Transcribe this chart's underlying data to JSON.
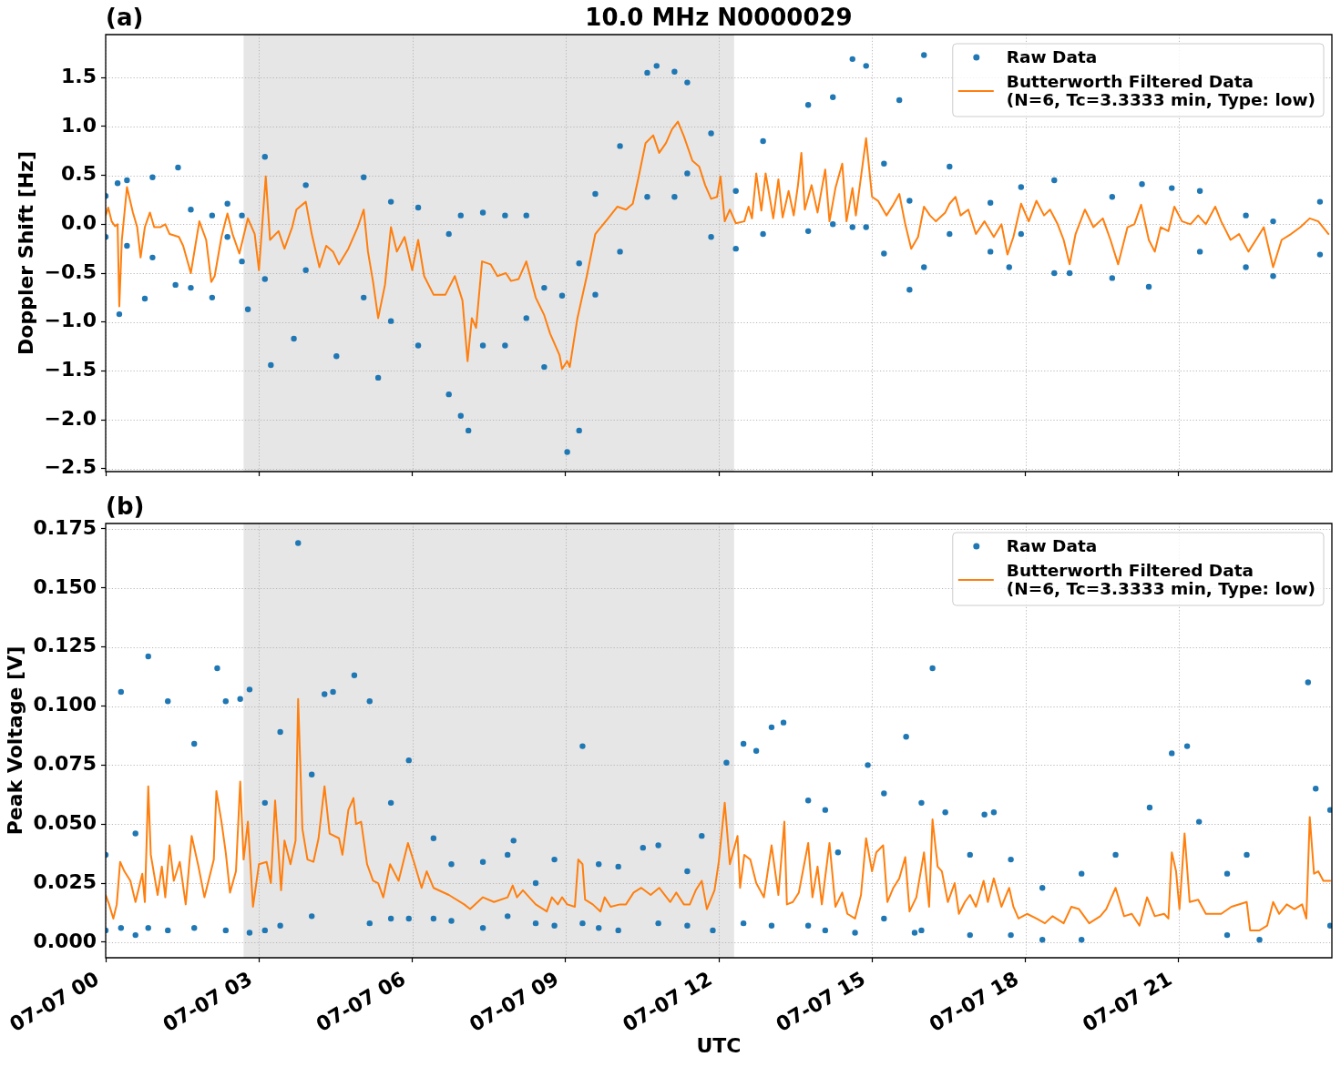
{
  "chart_data": [
    {
      "type": "scatter",
      "title": "10.0 MHz N0000029",
      "annotations": [
        "(a)"
      ],
      "ylabel": "Doppler Shift [Hz]",
      "xlim": [
        "--07-07T00:00",
        "--07-08T00:00"
      ],
      "xticks": [
        {
          "value": "--07-07T00:00",
          "label": null
        },
        {
          "value": "--07-07T03:00",
          "label": null
        },
        {
          "value": "--07-07T06:00",
          "label": null
        },
        {
          "value": "--07-07T09:00",
          "label": null
        },
        {
          "value": "--07-07T12:00",
          "label": null
        },
        {
          "value": "--07-07T15:00",
          "label": null
        },
        {
          "value": "--07-07T18:00",
          "label": null
        },
        {
          "value": "--07-07T21:00",
          "label": null
        }
      ],
      "ylim": [
        -2.53,
        1.94
      ],
      "yticks": [
        {
          "value": -2.5,
          "label": "−2.5"
        },
        {
          "value": -2,
          "label": "−2.0"
        },
        {
          "value": -1.5,
          "label": "−1.5"
        },
        {
          "value": -1,
          "label": "−1.0"
        },
        {
          "value": -0.5,
          "label": "−0.5"
        },
        {
          "value": 0,
          "label": "0.0"
        },
        0.5,
        {
          "value": 1,
          "label": "1.0"
        },
        1.5
      ],
      "tick_labels": "y",
      "grid": true,
      "legend": "top right",
      "bands": [
        {
          "axis": "x",
          "from": "--07-07T02:42",
          "to": "--07-07T12:18",
          "color": "#e6e6e6"
        }
      ],
      "series": [
        {
          "name": "Raw Data",
          "color": "#1f77b4",
          "marker": "circle",
          "x": [
            "--07-07T00:00",
            "--07-07T00:00",
            "--07-07T00:14",
            "--07-07T00:16",
            "--07-07T00:25",
            "--07-07T00:25",
            "--07-07T00:46",
            "--07-07T00:55",
            "--07-07T00:55",
            "--07-07T01:22",
            "--07-07T01:25",
            "--07-07T01:40",
            "--07-07T01:40",
            "--07-07T02:05",
            "--07-07T02:05",
            "--07-07T02:23",
            "--07-07T02:23",
            "--07-07T02:40",
            "--07-07T02:40",
            "--07-07T02:47",
            "--07-07T03:07",
            "--07-07T03:07",
            "--07-07T03:14",
            "--07-07T03:41",
            "--07-07T03:55",
            "--07-07T03:55",
            "--07-07T04:31",
            "--07-07T05:03",
            "--07-07T05:03",
            "--07-07T05:20",
            "--07-07T05:35",
            "--07-07T05:35",
            "--07-07T06:07",
            "--07-07T06:07",
            "--07-07T06:43",
            "--07-07T06:43",
            "--07-07T06:57",
            "--07-07T06:57",
            "--07-07T07:06",
            "--07-07T07:23",
            "--07-07T07:23",
            "--07-07T07:49",
            "--07-07T07:49",
            "--07-07T08:14",
            "--07-07T08:14",
            "--07-07T08:35",
            "--07-07T08:35",
            "--07-07T08:56",
            "--07-07T09:02",
            "--07-07T09:16",
            "--07-07T09:16",
            "--07-07T09:35",
            "--07-07T09:35",
            "--07-07T10:04",
            "--07-07T10:04",
            "--07-07T10:36",
            "--07-07T10:36",
            "--07-07T10:47",
            "--07-07T11:08",
            "--07-07T11:08",
            "--07-07T11:23",
            "--07-07T11:23",
            "--07-07T11:51",
            "--07-07T11:51",
            "--07-07T12:20",
            "--07-07T12:20",
            "--07-07T12:52",
            "--07-07T12:52",
            "--07-07T13:45",
            "--07-07T13:45",
            "--07-07T14:14",
            "--07-07T14:14",
            "--07-07T14:37",
            "--07-07T14:37",
            "--07-07T14:53",
            "--07-07T14:53",
            "--07-07T15:14",
            "--07-07T15:14",
            "--07-07T15:32",
            "--07-07T15:44",
            "--07-07T15:44",
            "--07-07T16:01",
            "--07-07T16:01",
            "--07-07T16:31",
            "--07-07T16:31",
            "--07-07T17:19",
            "--07-07T17:19",
            "--07-07T17:41",
            "--07-07T17:55",
            "--07-07T17:55",
            "--07-07T18:34",
            "--07-07T18:34",
            "--07-07T18:52",
            "--07-07T19:42",
            "--07-07T19:42",
            "--07-07T20:17",
            "--07-07T20:25",
            "--07-07T20:52",
            "--07-07T21:25",
            "--07-07T21:25",
            "--07-07T22:19",
            "--07-07T22:19",
            "--07-07T22:51",
            "--07-07T22:51",
            "--07-07T23:46",
            "--07-07T23:46"
          ],
          "values": [
            0.29,
            -0.13,
            0.42,
            -0.92,
            0.45,
            -0.22,
            -0.76,
            0.48,
            -0.34,
            -0.62,
            0.58,
            0.15,
            -0.65,
            0.09,
            -0.75,
            0.21,
            -0.13,
            0.09,
            -0.38,
            -0.87,
            0.69,
            -0.56,
            -1.44,
            -1.17,
            0.4,
            -0.47,
            -1.35,
            0.48,
            -0.75,
            -1.57,
            0.23,
            -0.99,
            0.17,
            -1.24,
            -0.1,
            -1.74,
            0.09,
            -1.96,
            -2.11,
            0.12,
            -1.24,
            0.09,
            -1.24,
            0.09,
            -0.96,
            -0.65,
            -1.46,
            -0.73,
            -2.33,
            -0.4,
            -2.11,
            0.31,
            -0.72,
            0.8,
            -0.28,
            1.55,
            0.28,
            1.62,
            1.56,
            0.28,
            1.45,
            0.52,
            0.93,
            -0.13,
            0.34,
            -0.25,
            0.85,
            -0.1,
            1.22,
            -0.07,
            1.3,
            0,
            1.69,
            -0.03,
            1.62,
            -0.03,
            0.62,
            -0.3,
            1.27,
            0.24,
            -0.67,
            1.73,
            -0.44,
            0.59,
            -0.1,
            0.22,
            -0.28,
            -0.44,
            0.38,
            -0.1,
            0.45,
            -0.5,
            -0.5,
            0.28,
            -0.55,
            0.41,
            -0.64,
            0.37,
            0.34,
            -0.28,
            0.09,
            -0.44,
            0.03,
            -0.53,
            0.23,
            -0.31
          ]
        },
        {
          "name": "Butterworth Filtered Data\n(N=6, Tc=3.3333 min, Type: low)",
          "type": "line",
          "color": "#ff7f0e",
          "x": [
            "--07-07T00:00",
            "--07-07T00:03",
            "--07-07T00:07",
            "--07-07T00:11",
            "--07-07T00:14",
            "--07-07T00:16",
            "--07-07T00:19",
            "--07-07T00:25",
            "--07-07T00:32",
            "--07-07T00:37",
            "--07-07T00:41",
            "--07-07T00:46",
            "--07-07T00:52",
            "--07-07T00:57",
            "--07-07T01:04",
            "--07-07T01:10",
            "--07-07T01:15",
            "--07-07T01:26",
            "--07-07T01:31",
            "--07-07T01:40",
            "--07-07T01:50",
            "--07-07T01:58",
            "--07-07T02:04",
            "--07-07T02:08",
            "--07-07T02:16",
            "--07-07T02:23",
            "--07-07T02:29",
            "--07-07T02:37",
            "--07-07T02:47",
            "--07-07T02:55",
            "--07-07T03:00",
            "--07-07T03:08",
            "--07-07T03:13",
            "--07-07T03:23",
            "--07-07T03:30",
            "--07-07T03:39",
            "--07-07T03:44",
            "--07-07T03:55",
            "--07-07T04:02",
            "--07-07T04:11",
            "--07-07T04:19",
            "--07-07T04:27",
            "--07-07T04:34",
            "--07-07T04:45",
            "--07-07T04:56",
            "--07-07T05:03",
            "--07-07T05:08",
            "--07-07T05:14",
            "--07-07T05:20",
            "--07-07T05:28",
            "--07-07T05:35",
            "--07-07T05:42",
            "--07-07T05:51",
            "--07-07T06:00",
            "--07-07T06:07",
            "--07-07T06:14",
            "--07-07T06:25",
            "--07-07T06:39",
            "--07-07T06:50",
            "--07-07T06:59",
            "--07-07T07:05",
            "--07-07T07:10",
            "--07-07T07:15",
            "--07-07T07:22",
            "--07-07T07:32",
            "--07-07T07:40",
            "--07-07T07:50",
            "--07-07T07:56",
            "--07-07T08:05",
            "--07-07T08:14",
            "--07-07T08:25",
            "--07-07T08:35",
            "--07-07T08:42",
            "--07-07T08:53",
            "--07-07T08:56",
            "--07-07T09:02",
            "--07-07T09:05",
            "--07-07T09:14",
            "--07-07T09:25",
            "--07-07T09:35",
            "--07-07T09:50",
            "--07-07T10:01",
            "--07-07T10:11",
            "--07-07T10:19",
            "--07-07T10:26",
            "--07-07T10:34",
            "--07-07T10:43",
            "--07-07T10:50",
            "--07-07T10:58",
            "--07-07T11:05",
            "--07-07T11:12",
            "--07-07T11:19",
            "--07-07T11:29",
            "--07-07T11:37",
            "--07-07T11:44",
            "--07-07T11:51",
            "--07-07T11:58",
            "--07-07T12:02",
            "--07-07T12:07",
            "--07-07T12:13",
            "--07-07T12:20",
            "--07-07T12:30",
            "--07-07T12:35",
            "--07-07T12:39",
            "--07-07T12:44",
            "--07-07T12:50",
            "--07-07T12:55",
            "--07-07T13:04",
            "--07-07T13:10",
            "--07-07T13:15",
            "--07-07T13:22",
            "--07-07T13:28",
            "--07-07T13:33",
            "--07-07T13:37",
            "--07-07T13:41",
            "--07-07T13:49",
            "--07-07T13:56",
            "--07-07T14:05",
            "--07-07T14:10",
            "--07-07T14:17",
            "--07-07T14:25",
            "--07-07T14:30",
            "--07-07T14:37",
            "--07-07T14:41",
            "--07-07T14:53",
            "--07-07T15:00",
            "--07-07T15:07",
            "--07-07T15:17",
            "--07-07T15:25",
            "--07-07T15:32",
            "--07-07T15:39",
            "--07-07T15:46",
            "--07-07T15:54",
            "--07-07T16:01",
            "--07-07T16:08",
            "--07-07T16:15",
            "--07-07T16:26",
            "--07-07T16:31",
            "--07-07T16:38",
            "--07-07T16:44",
            "--07-07T16:53",
            "--07-07T17:02",
            "--07-07T17:12",
            "--07-07T17:23",
            "--07-07T17:32",
            "--07-07T17:39",
            "--07-07T17:46",
            "--07-07T17:55",
            "--07-07T18:04",
            "--07-07T18:13",
            "--07-07T18:22",
            "--07-07T18:29",
            "--07-07T18:38",
            "--07-07T18:45",
            "--07-07T18:52",
            "--07-07T18:59",
            "--07-07T19:10",
            "--07-07T19:20",
            "--07-07T19:31",
            "--07-07T19:40",
            "--07-07T19:49",
            "--07-07T20:00",
            "--07-07T20:08",
            "--07-07T20:16",
            "--07-07T20:25",
            "--07-07T20:32",
            "--07-07T20:39",
            "--07-07T20:48",
            "--07-07T20:55",
            "--07-07T21:04",
            "--07-07T21:14",
            "--07-07T21:23",
            "--07-07T21:32",
            "--07-07T21:43",
            "--07-07T21:50",
            "--07-07T22:01",
            "--07-07T22:11",
            "--07-07T22:22",
            "--07-07T22:33",
            "--07-07T22:40",
            "--07-07T22:51",
            "--07-07T23:01",
            "--07-07T23:12",
            "--07-07T23:23",
            "--07-07T23:34",
            "--07-07T23:44",
            "--07-07T23:56"
          ],
          "values": [
            0.09,
            0.17,
            0.03,
            -0.02,
            0,
            -0.84,
            -0.16,
            0.38,
            0.12,
            -0.03,
            -0.34,
            -0.03,
            0.12,
            -0.03,
            -0.03,
            0,
            -0.1,
            -0.13,
            -0.22,
            -0.5,
            0.03,
            -0.16,
            -0.59,
            -0.53,
            -0.13,
            0.11,
            -0.1,
            -0.3,
            0.06,
            -0.1,
            -0.47,
            0.49,
            -0.16,
            -0.07,
            -0.25,
            -0.03,
            0.15,
            0.23,
            -0.1,
            -0.44,
            -0.22,
            -0.28,
            -0.41,
            -0.25,
            -0.03,
            0.15,
            -0.28,
            -0.59,
            -0.96,
            -0.62,
            -0.03,
            -0.28,
            -0.13,
            -0.47,
            -0.16,
            -0.53,
            -0.72,
            -0.72,
            -0.53,
            -0.78,
            -1.4,
            -0.96,
            -1.06,
            -0.38,
            -0.41,
            -0.53,
            -0.5,
            -0.58,
            -0.56,
            -0.38,
            -0.75,
            -0.93,
            -1.12,
            -1.34,
            -1.48,
            -1.4,
            -1.46,
            -0.96,
            -0.53,
            -0.1,
            0.06,
            0.18,
            0.15,
            0.21,
            0.49,
            0.83,
            0.91,
            0.73,
            0.83,
            0.97,
            1.05,
            0.9,
            0.65,
            0.59,
            0.4,
            0.26,
            0.28,
            0.49,
            0.03,
            0.15,
            0.01,
            0.03,
            0.18,
            0.06,
            0.52,
            0.14,
            0.52,
            0.06,
            0.46,
            0.07,
            0.34,
            0.09,
            0.4,
            0.73,
            0.15,
            0.4,
            0.12,
            0.56,
            0.03,
            0.37,
            0.62,
            0.03,
            0.37,
            0.09,
            0.88,
            0.28,
            0.24,
            0.09,
            0.2,
            0.31,
            0,
            -0.25,
            -0.13,
            0.18,
            0.09,
            0.03,
            0.12,
            0.21,
            0.28,
            0.09,
            0.15,
            -0.1,
            0.03,
            -0.13,
            0,
            -0.31,
            -0.13,
            0.21,
            0.03,
            0.24,
            0.09,
            0.15,
            0,
            -0.16,
            -0.41,
            -0.1,
            0.15,
            -0.03,
            0.06,
            -0.16,
            -0.41,
            -0.03,
            0,
            0.2,
            -0.16,
            -0.28,
            -0.03,
            -0.07,
            0.18,
            0.03,
            0,
            0.09,
            0,
            0.18,
            0.03,
            -0.16,
            -0.1,
            -0.28,
            -0.13,
            -0.03,
            -0.44,
            -0.16,
            -0.1,
            -0.03,
            0.06,
            0.03,
            -0.1
          ]
        }
      ]
    },
    {
      "type": "scatter",
      "annotations": [
        "(b)"
      ],
      "xlabel": "UTC",
      "ylabel": "Peak Voltage [V]",
      "xlim": [
        "--07-07T00:00",
        "--07-08T00:00"
      ],
      "xticks": [
        {
          "value": "--07-07T00:00",
          "label": "07-07 00"
        },
        {
          "value": "--07-07T03:00",
          "label": "07-07 03"
        },
        {
          "value": "--07-07T06:00",
          "label": "07-07 06"
        },
        {
          "value": "--07-07T09:00",
          "label": "07-07 09"
        },
        {
          "value": "--07-07T12:00",
          "label": "07-07 12"
        },
        {
          "value": "--07-07T15:00",
          "label": "07-07 15"
        },
        {
          "value": "--07-07T18:00",
          "label": "07-07 18"
        },
        {
          "value": "--07-07T21:00",
          "label": "07-07 21"
        }
      ],
      "ylim": [
        -0.0066,
        0.1773
      ],
      "yticks": [
        {
          "value": 0,
          "label": "0.000"
        },
        0.025,
        {
          "value": 0.05,
          "label": "0.050"
        },
        0.075,
        {
          "value": 0.1,
          "label": "0.100"
        },
        0.125,
        {
          "value": 0.15,
          "label": "0.150"
        },
        0.175
      ],
      "grid": true,
      "legend": "top right",
      "bands": [
        {
          "axis": "x",
          "from": "--07-07T02:42",
          "to": "--07-07T12:18",
          "color": "#e6e6e6"
        }
      ],
      "series": [
        {
          "name": "Raw Data",
          "color": "#1f77b4",
          "marker": "circle",
          "x": [
            "--07-07T00:00",
            "--07-07T00:00",
            "--07-07T00:18",
            "--07-07T00:18",
            "--07-07T00:35",
            "--07-07T00:35",
            "--07-07T00:50",
            "--07-07T00:50",
            "--07-07T01:13",
            "--07-07T01:13",
            "--07-07T01:44",
            "--07-07T01:44",
            "--07-07T02:11",
            "--07-07T02:21",
            "--07-07T02:21",
            "--07-07T02:38",
            "--07-07T02:49",
            "--07-07T02:49",
            "--07-07T03:07",
            "--07-07T03:07",
            "--07-07T03:25",
            "--07-07T03:25",
            "--07-07T03:46",
            "--07-07T04:02",
            "--07-07T04:02",
            "--07-07T04:17",
            "--07-07T04:27",
            "--07-07T04:52",
            "--07-07T05:10",
            "--07-07T05:10",
            "--07-07T05:35",
            "--07-07T05:35",
            "--07-07T05:56",
            "--07-07T05:56",
            "--07-07T06:25",
            "--07-07T06:25",
            "--07-07T06:46",
            "--07-07T06:46",
            "--07-07T07:23",
            "--07-07T07:23",
            "--07-07T07:52",
            "--07-07T07:52",
            "--07-07T07:59",
            "--07-07T08:25",
            "--07-07T08:25",
            "--07-07T08:47",
            "--07-07T08:47",
            "--07-07T09:20",
            "--07-07T09:20",
            "--07-07T09:39",
            "--07-07T09:39",
            "--07-07T10:02",
            "--07-07T10:02",
            "--07-07T10:31",
            "--07-07T10:49",
            "--07-07T10:49",
            "--07-07T11:23",
            "--07-07T11:23",
            "--07-07T11:40",
            "--07-07T11:53",
            "--07-07T12:09",
            "--07-07T12:29",
            "--07-07T12:29",
            "--07-07T12:44",
            "--07-07T13:02",
            "--07-07T13:02",
            "--07-07T13:16",
            "--07-07T13:45",
            "--07-07T13:45",
            "--07-07T14:05",
            "--07-07T14:05",
            "--07-07T14:20",
            "--07-07T14:40",
            "--07-07T14:55",
            "--07-07T15:14",
            "--07-07T15:14",
            "--07-07T15:40",
            "--07-07T15:50",
            "--07-07T15:58",
            "--07-07T15:58",
            "--07-07T16:11",
            "--07-07T16:26",
            "--07-07T16:55",
            "--07-07T16:55",
            "--07-07T17:12",
            "--07-07T17:23",
            "--07-07T17:43",
            "--07-07T17:43",
            "--07-07T18:20",
            "--07-07T18:20",
            "--07-07T19:06",
            "--07-07T19:06",
            "--07-07T19:46",
            "--07-07T20:26",
            "--07-07T20:52",
            "--07-07T21:10",
            "--07-07T21:24",
            "--07-07T21:57",
            "--07-07T21:57",
            "--07-07T22:20",
            "--07-07T22:35",
            "--07-07T23:32",
            "--07-07T23:41",
            "--07-07T23:58",
            "--07-07T23:58"
          ],
          "values": [
            0.037,
            0.005,
            0.106,
            0.006,
            0.046,
            0.003,
            0.121,
            0.006,
            0.102,
            0.005,
            0.084,
            0.006,
            0.116,
            0.102,
            0.005,
            0.103,
            0.107,
            0.004,
            0.059,
            0.005,
            0.089,
            0.007,
            0.169,
            0.071,
            0.011,
            0.105,
            0.106,
            0.113,
            0.102,
            0.008,
            0.059,
            0.01,
            0.077,
            0.01,
            0.044,
            0.01,
            0.033,
            0.009,
            0.034,
            0.006,
            0.037,
            0.011,
            0.043,
            0.025,
            0.008,
            0.035,
            0.007,
            0.083,
            0.008,
            0.033,
            0.006,
            0.032,
            0.005,
            0.04,
            0.041,
            0.008,
            0.03,
            0.007,
            0.045,
            0.005,
            0.076,
            0.084,
            0.008,
            0.081,
            0.091,
            0.007,
            0.093,
            0.06,
            0.007,
            0.056,
            0.005,
            0.038,
            0.004,
            0.075,
            0.063,
            0.01,
            0.087,
            0.004,
            0.059,
            0.005,
            0.116,
            0.055,
            0.037,
            0.003,
            0.054,
            0.055,
            0.035,
            0.003,
            0.023,
            0.001,
            0.029,
            0.001,
            0.037,
            0.057,
            0.08,
            0.083,
            0.051,
            0.029,
            0.003,
            0.037,
            0.001,
            0.11,
            0.065,
            0.056,
            0.007
          ]
        },
        {
          "name": "Butterworth Filtered Data\n(N=6, Tc=3.3333 min, Type: low)",
          "type": "line",
          "color": "#ff7f0e",
          "x": [
            "--07-07T00:00",
            "--07-07T00:04",
            "--07-07T00:09",
            "--07-07T00:13",
            "--07-07T00:17",
            "--07-07T00:22",
            "--07-07T00:29",
            "--07-07T00:35",
            "--07-07T00:43",
            "--07-07T00:46",
            "--07-07T00:50",
            "--07-07T00:53",
            "--07-07T01:01",
            "--07-07T01:06",
            "--07-07T01:10",
            "--07-07T01:15",
            "--07-07T01:20",
            "--07-07T01:27",
            "--07-07T01:34",
            "--07-07T01:41",
            "--07-07T01:49",
            "--07-07T01:56",
            "--07-07T02:07",
            "--07-07T02:10",
            "--07-07T02:16",
            "--07-07T02:21",
            "--07-07T02:26",
            "--07-07T02:33",
            "--07-07T02:38",
            "--07-07T02:42",
            "--07-07T02:47",
            "--07-07T02:53",
            "--07-07T03:00",
            "--07-07T03:09",
            "--07-07T03:14",
            "--07-07T03:19",
            "--07-07T03:26",
            "--07-07T03:30",
            "--07-07T03:37",
            "--07-07T03:43",
            "--07-07T03:46",
            "--07-07T03:51",
            "--07-07T03:57",
            "--07-07T04:04",
            "--07-07T04:10",
            "--07-07T04:17",
            "--07-07T04:23",
            "--07-07T04:34",
            "--07-07T04:38",
            "--07-07T04:45",
            "--07-07T04:51",
            "--07-07T04:54",
            "--07-07T05:00",
            "--07-07T05:07",
            "--07-07T05:14",
            "--07-07T05:20",
            "--07-07T05:26",
            "--07-07T05:34",
            "--07-07T05:44",
            "--07-07T05:55",
            "--07-07T06:02",
            "--07-07T06:11",
            "--07-07T06:17",
            "--07-07T06:25",
            "--07-07T06:43",
            "--07-07T07:01",
            "--07-07T07:08",
            "--07-07T07:23",
            "--07-07T07:36",
            "--07-07T07:52",
            "--07-07T07:58",
            "--07-07T08:03",
            "--07-07T08:10",
            "--07-07T08:25",
            "--07-07T08:38",
            "--07-07T08:44",
            "--07-07T08:51",
            "--07-07T08:56",
            "--07-07T09:02",
            "--07-07T09:11",
            "--07-07T09:15",
            "--07-07T09:20",
            "--07-07T09:23",
            "--07-07T09:32",
            "--07-07T09:41",
            "--07-07T09:46",
            "--07-07T09:53",
            "--07-07T10:04",
            "--07-07T10:11",
            "--07-07T10:20",
            "--07-07T10:29",
            "--07-07T10:40",
            "--07-07T10:50",
            "--07-07T11:03",
            "--07-07T11:10",
            "--07-07T11:19",
            "--07-07T11:26",
            "--07-07T11:33",
            "--07-07T11:40",
            "--07-07T11:46",
            "--07-07T11:55",
            "--07-07T12:00",
            "--07-07T12:07",
            "--07-07T12:13",
            "--07-07T12:22",
            "--07-07T12:25",
            "--07-07T12:30",
            "--07-07T12:37",
            "--07-07T12:44",
            "--07-07T12:53",
            "--07-07T13:02",
            "--07-07T13:10",
            "--07-07T13:17",
            "--07-07T13:20",
            "--07-07T13:27",
            "--07-07T13:34",
            "--07-07T13:45",
            "--07-07T13:50",
            "--07-07T13:56",
            "--07-07T14:01",
            "--07-07T14:10",
            "--07-07T14:17",
            "--07-07T14:25",
            "--07-07T14:31",
            "--07-07T14:40",
            "--07-07T14:47",
            "--07-07T14:53",
            "--07-07T15:00",
            "--07-07T15:05",
            "--07-07T15:13",
            "--07-07T15:18",
            "--07-07T15:25",
            "--07-07T15:32",
            "--07-07T15:39",
            "--07-07T15:44",
            "--07-07T15:52",
            "--07-07T16:01",
            "--07-07T16:07",
            "--07-07T16:11",
            "--07-07T16:17",
            "--07-07T16:22",
            "--07-07T16:29",
            "--07-07T16:37",
            "--07-07T16:42",
            "--07-07T16:49",
            "--07-07T16:55",
            "--07-07T17:02",
            "--07-07T17:07",
            "--07-07T17:11",
            "--07-07T17:16",
            "--07-07T17:23",
            "--07-07T17:32",
            "--07-07T17:41",
            "--07-07T17:46",
            "--07-07T17:52",
            "--07-07T18:02",
            "--07-07T18:13",
            "--07-07T18:23",
            "--07-07T18:32",
            "--07-07T18:45",
            "--07-07T18:54",
            "--07-07T19:03",
            "--07-07T19:15",
            "--07-07T19:28",
            "--07-07T19:35",
            "--07-07T19:46",
            "--07-07T19:56",
            "--07-07T20:05",
            "--07-07T20:14",
            "--07-07T20:23",
            "--07-07T20:32",
            "--07-07T20:43",
            "--07-07T20:48",
            "--07-07T20:52",
            "--07-07T20:57",
            "--07-07T21:01",
            "--07-07T21:07",
            "--07-07T21:13",
            "--07-07T21:23",
            "--07-07T21:32",
            "--07-07T21:43",
            "--07-07T21:50",
            "--07-07T22:02",
            "--07-07T22:20",
            "--07-07T22:24",
            "--07-07T22:35",
            "--07-07T22:44",
            "--07-07T22:51",
            "--07-07T22:58",
            "--07-07T23:07",
            "--07-07T23:16",
            "--07-07T23:25",
            "--07-07T23:30",
            "--07-07T23:34",
            "--07-07T23:39",
            "--07-07T23:44",
            "--07-07T23:50",
            "--07-07T23:58"
          ],
          "values": [
            0.02,
            0.016,
            0.01,
            0.016,
            0.034,
            0.03,
            0.026,
            0.017,
            0.029,
            0.017,
            0.066,
            0.037,
            0.02,
            0.032,
            0.019,
            0.041,
            0.026,
            0.034,
            0.016,
            0.045,
            0.032,
            0.019,
            0.035,
            0.064,
            0.051,
            0.038,
            0.021,
            0.03,
            0.068,
            0.035,
            0.051,
            0.015,
            0.033,
            0.034,
            0.025,
            0.06,
            0.022,
            0.043,
            0.033,
            0.043,
            0.103,
            0.048,
            0.035,
            0.034,
            0.044,
            0.066,
            0.046,
            0.044,
            0.037,
            0.056,
            0.061,
            0.05,
            0.051,
            0.033,
            0.026,
            0.025,
            0.019,
            0.033,
            0.026,
            0.042,
            0.034,
            0.023,
            0.03,
            0.023,
            0.02,
            0.016,
            0.014,
            0.019,
            0.017,
            0.019,
            0.024,
            0.019,
            0.022,
            0.016,
            0.013,
            0.019,
            0.016,
            0.019,
            0.016,
            0.015,
            0.035,
            0.033,
            0.018,
            0.016,
            0.013,
            0.019,
            0.015,
            0.016,
            0.016,
            0.021,
            0.023,
            0.02,
            0.023,
            0.017,
            0.021,
            0.016,
            0.016,
            0.022,
            0.026,
            0.014,
            0.022,
            0.034,
            0.059,
            0.033,
            0.045,
            0.023,
            0.037,
            0.035,
            0.025,
            0.019,
            0.041,
            0.02,
            0.051,
            0.016,
            0.017,
            0.021,
            0.042,
            0.019,
            0.032,
            0.016,
            0.042,
            0.015,
            0.021,
            0.012,
            0.01,
            0.02,
            0.044,
            0.03,
            0.038,
            0.041,
            0.017,
            0.023,
            0.027,
            0.036,
            0.013,
            0.019,
            0.038,
            0.015,
            0.052,
            0.032,
            0.03,
            0.017,
            0.025,
            0.012,
            0.017,
            0.02,
            0.015,
            0.021,
            0.026,
            0.017,
            0.027,
            0.015,
            0.023,
            0.015,
            0.01,
            0.012,
            0.01,
            0.008,
            0.011,
            0.008,
            0.015,
            0.014,
            0.008,
            0.011,
            0.014,
            0.023,
            0.011,
            0.012,
            0.007,
            0.019,
            0.011,
            0.012,
            0.01,
            0.038,
            0.03,
            0.014,
            0.046,
            0.017,
            0.018,
            0.012,
            0.012,
            0.012,
            0.015,
            0.017,
            0.005,
            0.005,
            0.007,
            0.017,
            0.012,
            0.016,
            0.014,
            0.016,
            0.01,
            0.053,
            0.029,
            0.03,
            0.026,
            0.026
          ]
        }
      ]
    }
  ]
}
